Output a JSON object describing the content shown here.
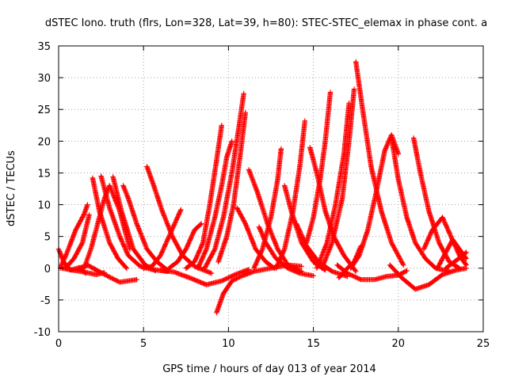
{
  "chart_data": {
    "type": "scatter",
    "title": "dSTEC Iono. truth (flrs, Lon=328, Lat=39, h=80): STEC-STEC_elemax in phase cont. a",
    "xlabel": "GPS time / hours of day 013 of year 2014",
    "ylabel": "dSTEC  / TECUs",
    "xlim": [
      0,
      25
    ],
    "ylim": [
      -10,
      35
    ],
    "xticks": [
      "0",
      "5",
      "10",
      "15",
      "20",
      "25"
    ],
    "yticks": [
      "-10",
      "-5",
      "0",
      "5",
      "10",
      "15",
      "20",
      "25",
      "30",
      "35"
    ],
    "xtick_values": [
      0,
      5,
      10,
      15,
      20,
      25
    ],
    "ytick_values": [
      -10,
      -5,
      0,
      5,
      10,
      15,
      20,
      25,
      30,
      35
    ],
    "grid": true,
    "legend": "none",
    "marker": "+",
    "series_color": "#ff0000",
    "arcs": [
      {
        "x": [
          0.0,
          0.3,
          0.7,
          1.2,
          1.6
        ],
        "y": [
          3.0,
          1.0,
          -0.3,
          0.1,
          -0.8
        ]
      },
      {
        "x": [
          0.1,
          0.5,
          1.0,
          1.5,
          1.7
        ],
        "y": [
          0.0,
          2.5,
          6.0,
          8.5,
          10.0
        ]
      },
      {
        "x": [
          0.2,
          0.8,
          1.5,
          2.2,
          2.7
        ],
        "y": [
          0.0,
          -0.3,
          -0.6,
          -1.0,
          -0.7
        ]
      },
      {
        "x": [
          0.4,
          0.9,
          1.4,
          1.8
        ],
        "y": [
          0.0,
          1.5,
          4.0,
          8.4
        ]
      },
      {
        "x": [
          1.2,
          1.7,
          2.3,
          3.0,
          3.6,
          4.1,
          4.6
        ],
        "y": [
          0.0,
          0.5,
          -0.4,
          -1.4,
          -2.2,
          -2.0,
          -1.8
        ]
      },
      {
        "x": [
          1.5,
          1.9,
          2.3,
          2.7,
          3.0,
          3.6,
          4.2
        ],
        "y": [
          0.0,
          3.0,
          7.0,
          11.0,
          13.0,
          9.0,
          3.0
        ]
      },
      {
        "x": [
          2.0,
          2.4,
          3.0,
          3.5,
          4.0
        ],
        "y": [
          14.2,
          9.0,
          4.0,
          1.5,
          0.0
        ]
      },
      {
        "x": [
          2.5,
          3.0,
          3.6,
          4.1,
          4.8,
          5.5,
          6.4
        ],
        "y": [
          14.5,
          9.5,
          5.0,
          2.0,
          0.3,
          -0.2,
          -0.5
        ]
      },
      {
        "x": [
          3.2,
          3.7,
          4.4,
          5.1,
          5.7
        ],
        "y": [
          14.4,
          9.0,
          3.0,
          0.5,
          -0.4
        ]
      },
      {
        "x": [
          3.8,
          4.1,
          4.6,
          5.2,
          5.8,
          6.5
        ],
        "y": [
          13.0,
          11.0,
          7.0,
          3.0,
          1.0,
          -0.5
        ]
      },
      {
        "x": [
          5.2,
          5.6,
          6.1,
          6.7,
          7.3,
          8.0,
          9.0
        ],
        "y": [
          16.0,
          13.0,
          9.0,
          5.0,
          2.0,
          0.3,
          -0.8
        ]
      },
      {
        "x": [
          5.0,
          5.5,
          6.0,
          6.5,
          7.0,
          7.2
        ],
        "y": [
          0.0,
          0.3,
          2.0,
          5.0,
          8.0,
          9.2
        ]
      },
      {
        "x": [
          6.0,
          6.8,
          7.8,
          8.7,
          9.6,
          10.4,
          11.2
        ],
        "y": [
          -0.3,
          -0.6,
          -1.6,
          -2.6,
          -2.0,
          -1.0,
          -0.2
        ]
      },
      {
        "x": [
          6.5,
          7.0,
          7.5,
          8.0,
          8.4
        ],
        "y": [
          0.0,
          1.0,
          3.0,
          6.0,
          7.0
        ]
      },
      {
        "x": [
          7.5,
          8.0,
          8.5,
          8.9,
          9.3,
          9.6
        ],
        "y": [
          0.0,
          1.0,
          4.0,
          10.0,
          17.0,
          22.5
        ]
      },
      {
        "x": [
          8.2,
          8.7,
          9.2,
          9.6,
          9.9,
          10.2
        ],
        "y": [
          0.0,
          3.0,
          8.0,
          13.0,
          17.5,
          20.0
        ]
      },
      {
        "x": [
          8.6,
          9.2,
          9.7,
          10.2,
          10.6,
          10.9
        ],
        "y": [
          0.0,
          3.0,
          8.0,
          15.0,
          22.0,
          27.5
        ]
      },
      {
        "x": [
          9.4,
          9.9,
          10.3,
          10.7,
          11.0
        ],
        "y": [
          1.0,
          5.0,
          10.0,
          18.0,
          24.5
        ]
      },
      {
        "x": [
          9.3,
          9.7,
          10.2,
          10.8,
          11.5,
          12.5,
          13.5,
          14.3
        ],
        "y": [
          -7.0,
          -4.0,
          -2.0,
          -1.2,
          -0.5,
          0.0,
          0.5,
          0.3
        ]
      },
      {
        "x": [
          10.5,
          11.0,
          11.6,
          12.2,
          12.7
        ],
        "y": [
          9.5,
          7.0,
          3.0,
          1.0,
          0.0
        ]
      },
      {
        "x": [
          11.2,
          11.7,
          12.3,
          12.9,
          13.5,
          14.3
        ],
        "y": [
          15.5,
          12.0,
          7.0,
          3.0,
          0.5,
          -0.5
        ]
      },
      {
        "x": [
          11.5,
          12.0,
          12.5,
          12.9,
          13.1
        ],
        "y": [
          0.0,
          3.0,
          8.0,
          14.0,
          18.8
        ]
      },
      {
        "x": [
          11.8,
          12.2,
          12.8,
          13.5,
          14.2,
          15.0
        ],
        "y": [
          6.5,
          4.0,
          1.5,
          0.0,
          -0.8,
          -1.2
        ]
      },
      {
        "x": [
          12.8,
          13.3,
          13.8,
          14.2,
          14.5
        ],
        "y": [
          0.0,
          3.0,
          9.0,
          16.0,
          23.2
        ]
      },
      {
        "x": [
          13.3,
          13.7,
          14.3,
          15.0,
          15.7
        ],
        "y": [
          13.0,
          9.0,
          4.0,
          1.0,
          -0.3
        ]
      },
      {
        "x": [
          14.0,
          14.6,
          15.3,
          16.1,
          17.0
        ],
        "y": [
          7.0,
          3.5,
          1.0,
          -0.5,
          -1.3
        ]
      },
      {
        "x": [
          14.8,
          15.2,
          15.7,
          16.2,
          16.8,
          17.5
        ],
        "y": [
          19.0,
          15.0,
          9.0,
          5.0,
          2.0,
          -0.5
        ]
      },
      {
        "x": [
          14.6,
          15.0,
          15.4,
          15.7,
          16.0
        ],
        "y": [
          4.0,
          8.0,
          14.0,
          20.0,
          27.7
        ]
      },
      {
        "x": [
          15.2,
          15.8,
          16.3,
          16.8,
          17.1
        ],
        "y": [
          0.0,
          4.0,
          10.0,
          18.0,
          26.0
        ]
      },
      {
        "x": [
          15.5,
          16.1,
          16.7,
          17.1,
          17.4
        ],
        "y": [
          0.0,
          4.0,
          11.0,
          20.0,
          28.2
        ]
      },
      {
        "x": [
          16.5,
          17.0,
          17.4,
          17.8
        ],
        "y": [
          -1.5,
          0.0,
          1.0,
          3.5
        ]
      },
      {
        "x": [
          17.5,
          17.9,
          18.4,
          19.0,
          19.6,
          20.3
        ],
        "y": [
          32.5,
          25.0,
          16.0,
          9.0,
          4.0,
          0.5
        ]
      },
      {
        "x": [
          16.4,
          17.0,
          17.8,
          18.6,
          19.3,
          20.0,
          20.5
        ],
        "y": [
          0.5,
          -0.8,
          -1.8,
          -1.8,
          -1.3,
          -1.1,
          -0.4
        ]
      },
      {
        "x": [
          17.2,
          17.7,
          18.2,
          18.7,
          19.2,
          19.6,
          20.0
        ],
        "y": [
          0.0,
          2.0,
          6.0,
          12.0,
          18.5,
          21.0,
          18.0
        ]
      },
      {
        "x": [
          19.6,
          20.0,
          20.5,
          21.0,
          21.6,
          22.2,
          23.0
        ],
        "y": [
          20.5,
          14.0,
          8.0,
          4.0,
          1.5,
          0.0,
          -0.5
        ]
      },
      {
        "x": [
          20.9,
          21.3,
          21.8,
          22.4,
          23.0,
          23.6
        ],
        "y": [
          20.5,
          15.0,
          9.0,
          4.0,
          1.0,
          0.0
        ]
      },
      {
        "x": [
          19.5,
          20.2,
          21.0,
          21.8,
          22.6,
          23.4,
          24.0
        ],
        "y": [
          0.5,
          -1.5,
          -3.3,
          -2.6,
          -1.0,
          -0.3,
          0.0
        ]
      },
      {
        "x": [
          21.5,
          22.0,
          22.6,
          23.1,
          23.6,
          24.0
        ],
        "y": [
          3.0,
          6.0,
          8.0,
          5.0,
          2.0,
          0.5
        ]
      },
      {
        "x": [
          22.3,
          22.7,
          23.2,
          23.6,
          24.0
        ],
        "y": [
          0.0,
          2.0,
          4.5,
          3.0,
          1.5
        ]
      },
      {
        "x": [
          22.8,
          23.3,
          23.8,
          24.0
        ],
        "y": [
          0.0,
          1.0,
          2.0,
          2.5
        ]
      }
    ]
  }
}
